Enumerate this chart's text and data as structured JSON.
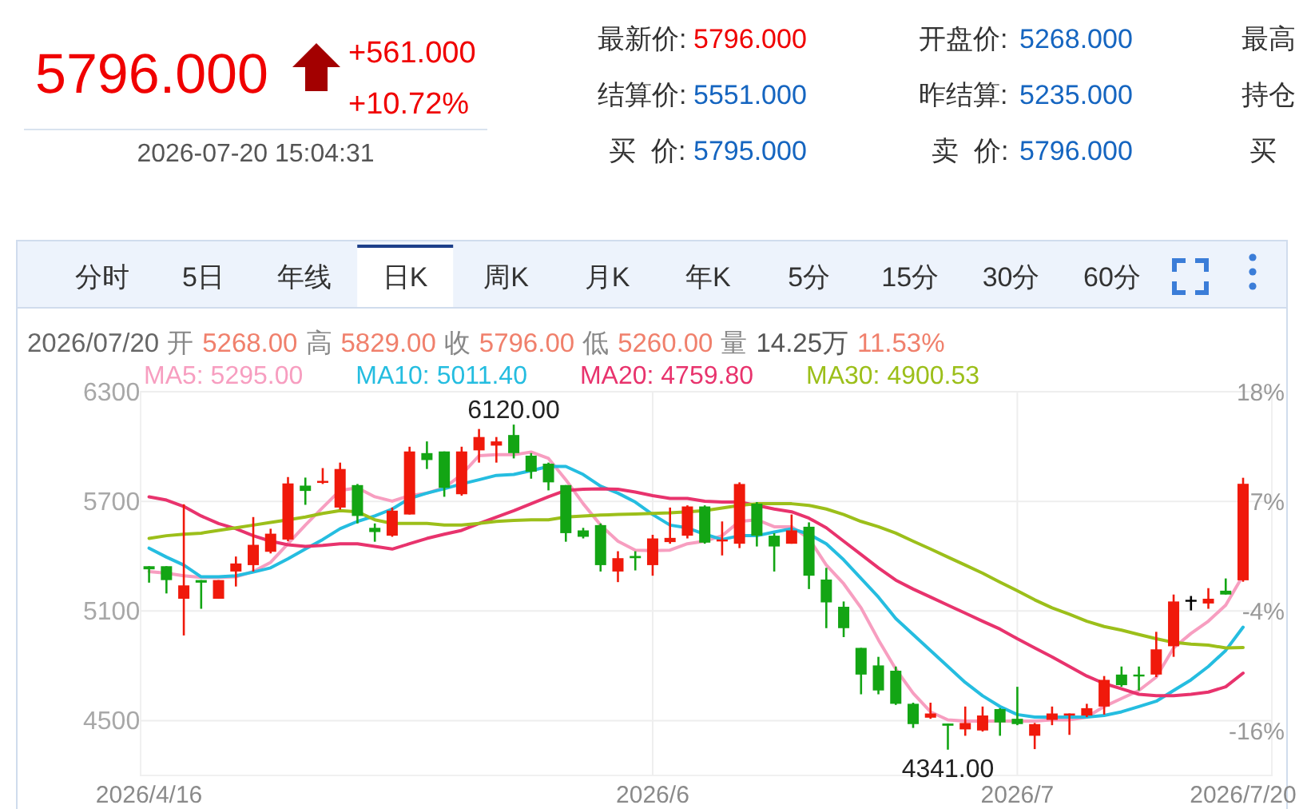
{
  "chart_data": [
    {
      "type": "other",
      "annotations": [
        "5796.000",
        "+561.000",
        "+10.72%",
        "2026-07-20 15:04:31",
        "最新价:",
        "5796.000",
        "开盘价:",
        "5268.000",
        "最高",
        "结算价:",
        "5551.000",
        "昨结算:",
        "5235.000",
        "持仓",
        "买  价:",
        "5795.000",
        "卖  价:",
        "5796.000",
        "买",
        "分时",
        "5日",
        "年线",
        "日K",
        "周K",
        "月K",
        "年K",
        "5分",
        "15分",
        "30分",
        "60分"
      ]
    },
    {
      "type": "candlestick",
      "categories": [
        "2026/4/16",
        null,
        null,
        null,
        null,
        null,
        null,
        null,
        null,
        null,
        null,
        null,
        null,
        null,
        null,
        null,
        null,
        null,
        null,
        null,
        null,
        null,
        null,
        null,
        null,
        null,
        null,
        null,
        null,
        "2026/6",
        null,
        null,
        null,
        null,
        null,
        null,
        null,
        null,
        null,
        null,
        null,
        null,
        null,
        null,
        null,
        null,
        null,
        null,
        null,
        null,
        "2026/7",
        null,
        null,
        null,
        null,
        null,
        null,
        null,
        null,
        null,
        null,
        null,
        null,
        "2026/7/20"
      ],
      "ohlc": [
        [
          5345,
          5345,
          5255,
          5328
        ],
        [
          5345,
          5345,
          5196,
          5269
        ],
        [
          5167,
          5684,
          4966,
          5240
        ],
        [
          5269,
          5269,
          5112,
          5255
        ],
        [
          5167,
          5269,
          5167,
          5269
        ],
        [
          5316,
          5398,
          5234,
          5360
        ],
        [
          5351,
          5614,
          5316,
          5462
        ],
        [
          5424,
          5550,
          5415,
          5523
        ],
        [
          5491,
          5833,
          5482,
          5798
        ],
        [
          5786,
          5830,
          5681,
          5757
        ],
        [
          5801,
          5882,
          5795,
          5812
        ],
        [
          5666,
          5912,
          5655,
          5877
        ],
        [
          5789,
          5795,
          5579,
          5620
        ],
        [
          5555,
          5579,
          5479,
          5532
        ],
        [
          5512,
          5666,
          5506,
          5649
        ],
        [
          5628,
          5999,
          5628,
          5973
        ],
        [
          5964,
          6028,
          5877,
          5926
        ],
        [
          5973,
          5973,
          5725,
          5774
        ],
        [
          5739,
          5999,
          5731,
          5973
        ],
        [
          5979,
          6096,
          5912,
          6052
        ],
        [
          6005,
          6052,
          5912,
          6028
        ],
        [
          6063,
          6120,
          5935,
          5964
        ],
        [
          5950,
          5964,
          5824,
          5862
        ],
        [
          5906,
          5912,
          5760,
          5804
        ],
        [
          5789,
          5789,
          5479,
          5526
        ],
        [
          5541,
          5555,
          5497,
          5506
        ],
        [
          5570,
          5579,
          5316,
          5351
        ],
        [
          5316,
          5427,
          5258,
          5389
        ],
        [
          5401,
          5427,
          5322,
          5389
        ],
        [
          5351,
          5517,
          5293,
          5497
        ],
        [
          5477,
          5666,
          5468,
          5500
        ],
        [
          5512,
          5678,
          5497,
          5672
        ],
        [
          5672,
          5678,
          5468,
          5474
        ],
        [
          5482,
          5590,
          5404,
          5491
        ],
        [
          5468,
          5804,
          5444,
          5795
        ],
        [
          5687,
          5696,
          5453,
          5512
        ],
        [
          5512,
          5526,
          5316,
          5453
        ],
        [
          5468,
          5628,
          5468,
          5541
        ],
        [
          5561,
          5585,
          5220,
          5293
        ],
        [
          5272,
          5336,
          5006,
          5147
        ],
        [
          5123,
          5152,
          4957,
          5006
        ],
        [
          4898,
          4898,
          4644,
          4752
        ],
        [
          4802,
          4849,
          4644,
          4665
        ],
        [
          4773,
          4796,
          4586,
          4592
        ],
        [
          4592,
          4598,
          4460,
          4481
        ],
        [
          4516,
          4598,
          4510,
          4539
        ],
        [
          4484,
          4484,
          4341,
          4472
        ],
        [
          4452,
          4577,
          4417,
          4487
        ],
        [
          4446,
          4577,
          4440,
          4528
        ],
        [
          4563,
          4568,
          4417,
          4490
        ],
        [
          4510,
          4685,
          4475,
          4481
        ],
        [
          4417,
          4487,
          4344,
          4481
        ],
        [
          4504,
          4577,
          4475,
          4539
        ],
        [
          4528,
          4539,
          4422,
          4539
        ],
        [
          4528,
          4592,
          4519,
          4568
        ],
        [
          4577,
          4744,
          4533,
          4723
        ],
        [
          4752,
          4796,
          4685,
          4694
        ],
        [
          4752,
          4796,
          4665,
          4744
        ],
        [
          4752,
          4986,
          4738,
          4890
        ],
        [
          4907,
          5190,
          4849,
          5152
        ],
        [
          5161,
          5182,
          5103,
          5161
        ],
        [
          5141,
          5225,
          5112,
          5167
        ],
        [
          5211,
          5278,
          5190,
          5190
        ],
        [
          5268,
          5829,
          5260,
          5796
        ]
      ],
      "colors": [
        "#13a514",
        "#13a514",
        "#f0190b",
        "#13a514",
        "#f0190b",
        "#f0190b",
        "#f0190b",
        "#f0190b",
        "#f0190b",
        "#13a514",
        "#f0190b",
        "#f0190b",
        "#13a514",
        "#13a514",
        "#f0190b",
        "#f0190b",
        "#13a514",
        "#13a514",
        "#f0190b",
        "#f0190b",
        "#f0190b",
        "#13a514",
        "#13a514",
        "#13a514",
        "#13a514",
        "#13a514",
        "#13a514",
        "#f0190b",
        "#13a514",
        "#f0190b",
        "#f0190b",
        "#f0190b",
        "#13a514",
        "#f0190b",
        "#f0190b",
        "#13a514",
        "#13a514",
        "#f0190b",
        "#13a514",
        "#13a514",
        "#13a514",
        "#13a514",
        "#13a514",
        "#13a514",
        "#13a514",
        "#f0190b",
        "#13a514",
        "#f0190b",
        "#f0190b",
        "#13a514",
        "#13a514",
        "#f0190b",
        "#f0190b",
        "#f0190b",
        "#f0190b",
        "#f0190b",
        "#13a514",
        "#13a514",
        "#f0190b",
        "#f0190b",
        "#000000",
        "#f0190b",
        "#13a514",
        "#f0190b"
      ],
      "series": [
        {
          "name": "MA5: 5295.00",
          "type": "line",
          "color": "#f79ec0",
          "values": [
            5316,
            5307,
            5293,
            5284,
            5284,
            5287,
            5316,
            5366,
            5468,
            5570,
            5666,
            5760,
            5774,
            5725,
            5701,
            5731,
            5745,
            5774,
            5847,
            5950,
            5955,
            5955,
            5970,
            5935,
            5818,
            5687,
            5570,
            5482,
            5433,
            5430,
            5433,
            5468,
            5482,
            5512,
            5590,
            5599,
            5561,
            5561,
            5497,
            5351,
            5249,
            5117,
            4942,
            4782,
            4650,
            4548,
            4504,
            4498,
            4498,
            4498,
            4498,
            4498,
            4504,
            4504,
            4519,
            4577,
            4621,
            4665,
            4738,
            4898,
            4977,
            5044,
            5132,
            5295
          ]
        },
        {
          "name": "MA10: 5011.40",
          "type": "line",
          "color": "#25bde0",
          "values": [
            5444,
            5395,
            5351,
            5287,
            5287,
            5293,
            5313,
            5336,
            5386,
            5439,
            5491,
            5550,
            5590,
            5620,
            5658,
            5716,
            5745,
            5769,
            5795,
            5818,
            5842,
            5847,
            5868,
            5891,
            5891,
            5847,
            5783,
            5745,
            5696,
            5628,
            5570,
            5555,
            5520,
            5491,
            5512,
            5512,
            5532,
            5550,
            5520,
            5468,
            5380,
            5278,
            5176,
            5059,
            4971,
            4884,
            4796,
            4709,
            4636,
            4577,
            4533,
            4519,
            4519,
            4519,
            4519,
            4528,
            4548,
            4577,
            4606,
            4665,
            4723,
            4796,
            4884,
            5011.4
          ]
        },
        {
          "name": "MA20: 4759.80",
          "type": "line",
          "color": "#e8336d",
          "values": [
            5725,
            5707,
            5672,
            5620,
            5579,
            5550,
            5512,
            5482,
            5462,
            5453,
            5459,
            5468,
            5468,
            5453,
            5439,
            5468,
            5497,
            5520,
            5541,
            5579,
            5614,
            5649,
            5687,
            5725,
            5760,
            5766,
            5769,
            5766,
            5751,
            5731,
            5716,
            5716,
            5701,
            5696,
            5696,
            5678,
            5658,
            5643,
            5608,
            5555,
            5482,
            5409,
            5336,
            5269,
            5220,
            5176,
            5132,
            5088,
            5044,
            5001,
            4948,
            4898,
            4849,
            4796,
            4744,
            4703,
            4674,
            4644,
            4636,
            4636,
            4644,
            4656,
            4685,
            4759.8
          ]
        },
        {
          "name": "MA30: 4900.53",
          "type": "line",
          "color": "#9cbf1a",
          "values": [
            5497,
            5512,
            5520,
            5526,
            5541,
            5555,
            5570,
            5585,
            5599,
            5614,
            5634,
            5649,
            5643,
            5599,
            5579,
            5579,
            5579,
            5570,
            5570,
            5579,
            5590,
            5596,
            5599,
            5599,
            5614,
            5620,
            5625,
            5628,
            5631,
            5634,
            5637,
            5643,
            5649,
            5663,
            5678,
            5687,
            5687,
            5687,
            5678,
            5658,
            5628,
            5590,
            5561,
            5526,
            5482,
            5439,
            5395,
            5351,
            5307,
            5258,
            5211,
            5161,
            5117,
            5082,
            5044,
            5015,
            4995,
            4971,
            4948,
            4928,
            4919,
            4913,
            4898,
            4900.53
          ]
        }
      ],
      "ylim": [
        4200,
        6300
      ],
      "yticks": [
        4500,
        5100,
        5700,
        6300
      ],
      "y2lim": [
        -20.5,
        18
      ],
      "y2ticks": [
        {
          "value": 18,
          "label": "18%"
        },
        {
          "value": 7,
          "label": "7%"
        },
        {
          "value": -4,
          "label": "-4%"
        },
        {
          "value": -16,
          "label": "-16%"
        }
      ],
      "grid": true,
      "annotations": [
        "2026/07/20",
        "开",
        "5268.00",
        "高",
        "5829.00",
        "收",
        "5796.00",
        "低",
        "5260.00",
        "量",
        "14.25万",
        "11.53%",
        {
          "text": "6120.00",
          "y": 6120
        },
        {
          "text": "4341.00",
          "y": 4341
        }
      ]
    }
  ]
}
